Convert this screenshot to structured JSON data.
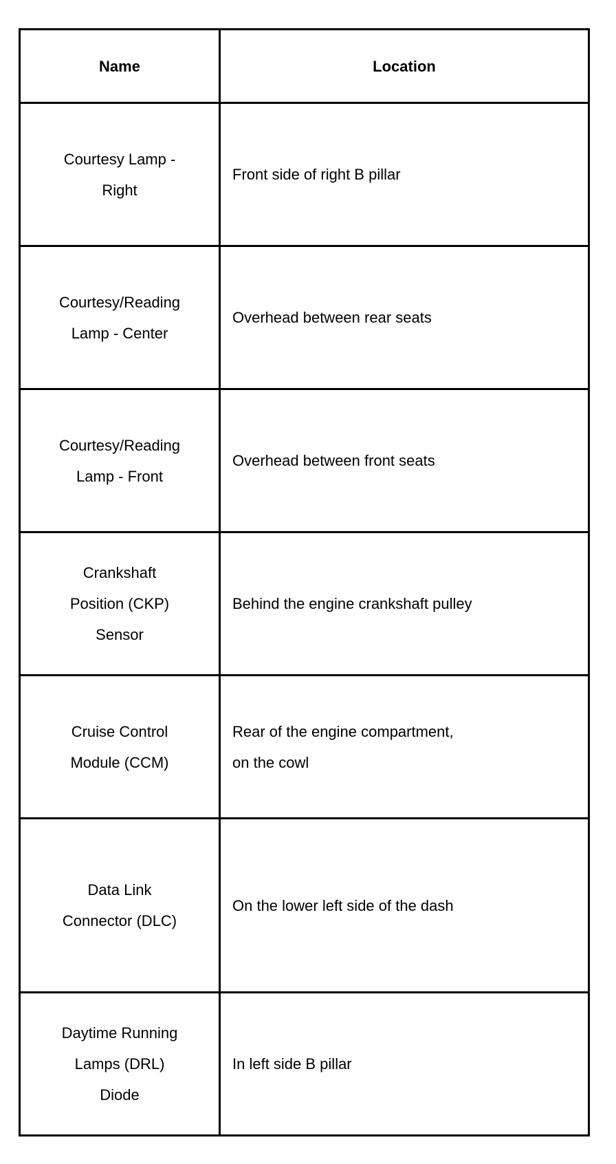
{
  "table": {
    "headers": {
      "name": "Name",
      "location": "Location"
    },
    "rows": [
      {
        "name": [
          "Courtesy Lamp -",
          "Right"
        ],
        "location": [
          "Front side of right B pillar"
        ]
      },
      {
        "name": [
          "Courtesy/Reading",
          "Lamp - Center"
        ],
        "location": [
          "Overhead between rear seats"
        ]
      },
      {
        "name": [
          "Courtesy/Reading",
          "Lamp - Front"
        ],
        "location": [
          "Overhead between front seats"
        ]
      },
      {
        "name": [
          "Crankshaft",
          "Position (CKP)",
          "Sensor"
        ],
        "location": [
          "Behind the engine crankshaft pulley"
        ]
      },
      {
        "name": [
          "Cruise Control",
          "Module (CCM)"
        ],
        "location": [
          "Rear of the engine compartment,",
          "on the cowl"
        ]
      },
      {
        "name": [
          "Data Link",
          "Connector (DLC)"
        ],
        "location": [
          "On the lower left side of the dash"
        ]
      },
      {
        "name": [
          "Daytime Running",
          "Lamps (DRL)",
          "Diode"
        ],
        "location": [
          "In left side B pillar"
        ]
      }
    ]
  }
}
